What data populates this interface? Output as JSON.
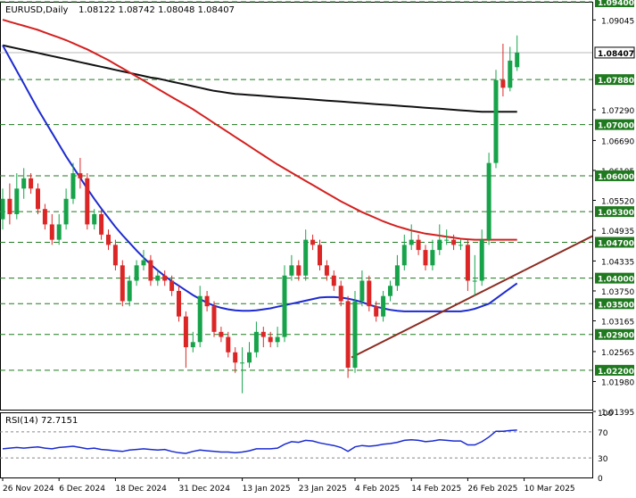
{
  "header": {
    "symbol_tf": "EURUSD,Daily",
    "ohlc": "1.08122 1.08742 1.08048 1.08407"
  },
  "rsi_header": "RSI(14) 72.7151",
  "colors": {
    "bull": "#16a34a",
    "bear": "#dc2626",
    "ma_blue": "#1d2bd0",
    "ma_red": "#d42020",
    "ma_black": "#111111",
    "trend": "#8b2d22",
    "level": "#1f7a1f",
    "rsi": "#1a2bd0"
  },
  "chart_data": [
    {
      "type": "candlestick",
      "ylim": [
        1.0143,
        1.094
      ],
      "y_ticks": [
        "1.09045",
        "1.07290",
        "1.06690",
        "1.06105",
        "1.05520",
        "1.04935",
        "1.04335",
        "1.03750",
        "1.03165",
        "1.02565",
        "1.01980",
        "1.01395"
      ],
      "level_values": [
        1.094,
        1.0788,
        1.07,
        1.06,
        1.053,
        1.047,
        1.04,
        1.035,
        1.029,
        1.022
      ],
      "level_labels": [
        "1.09400",
        "1.07880",
        "1.07000",
        "1.06000",
        "1.05300",
        "1.04700",
        "1.04000",
        "1.03500",
        "1.02900",
        "1.02200"
      ],
      "current_price_label": "1.08407",
      "current_price": 1.08407,
      "x_ticks": [
        "26 Nov 2024",
        "6 Dec 2024",
        "18 Dec 2024",
        "31 Dec 2024",
        "13 Jan 2025",
        "23 Jan 2025",
        "4 Feb 2025",
        "14 Feb 2025",
        "26 Feb 2025",
        "10 Mar 2025"
      ],
      "x_tick_bars": [
        0,
        8,
        16,
        25,
        34,
        42,
        50,
        58,
        66,
        74
      ],
      "series": [
        {
          "close": [
            1.0555,
            1.0525,
            1.0575,
            1.0595,
            1.0575,
            1.0535,
            1.0505,
            1.0475,
            1.0505,
            1.0555,
            1.0605,
            1.0595,
            1.0505,
            1.0525,
            1.0485,
            1.0465,
            1.0425,
            1.0355,
            1.0395,
            1.0425,
            1.0435,
            1.0395,
            1.0405,
            1.0395,
            1.0375,
            1.0325,
            1.0265,
            1.0275,
            1.0365,
            1.0345,
            1.0295,
            1.0285,
            1.0255,
            1.0235,
            1.0235,
            1.0255,
            1.0295,
            1.0285,
            1.0275,
            1.0285,
            1.0405,
            1.0425,
            1.0405,
            1.0475,
            1.0465,
            1.0425,
            1.0405,
            1.0385,
            1.0355,
            1.0225,
            1.0355,
            1.0395,
            1.0345,
            1.0325,
            1.0365,
            1.0385,
            1.0425,
            1.0465,
            1.0475,
            1.0455,
            1.0425,
            1.0455,
            1.0475,
            1.0475,
            1.0465,
            1.0465,
            1.0395,
            1.0395,
            1.0475,
            1.0625,
            1.0787,
            1.0772,
            1.0825,
            1.08407
          ]
        },
        {
          "open": [
            1.0515,
            1.0555,
            1.0525,
            1.0575,
            1.0595,
            1.0575,
            1.0535,
            1.0505,
            1.0475,
            1.0505,
            1.0555,
            1.0605,
            1.0595,
            1.0505,
            1.0525,
            1.0485,
            1.0465,
            1.0425,
            1.0355,
            1.0395,
            1.0425,
            1.0435,
            1.0395,
            1.0405,
            1.0395,
            1.0375,
            1.0325,
            1.0265,
            1.0275,
            1.0365,
            1.0345,
            1.0295,
            1.0285,
            1.0255,
            1.0235,
            1.0235,
            1.0255,
            1.0295,
            1.0285,
            1.0275,
            1.0285,
            1.0405,
            1.0425,
            1.0405,
            1.0475,
            1.0465,
            1.0425,
            1.0405,
            1.0385,
            1.0355,
            1.0225,
            1.0355,
            1.0395,
            1.0345,
            1.0325,
            1.0365,
            1.0385,
            1.0425,
            1.0465,
            1.0475,
            1.0455,
            1.0425,
            1.0455,
            1.0475,
            1.0475,
            1.0465,
            1.0465,
            1.0395,
            1.0395,
            1.0475,
            1.0625,
            1.0787,
            1.0772,
            1.08122
          ]
        },
        {
          "high": [
            1.0575,
            1.0585,
            1.0605,
            1.0615,
            1.0605,
            1.0585,
            1.0545,
            1.0525,
            1.0525,
            1.0575,
            1.0625,
            1.0635,
            1.0605,
            1.0535,
            1.0535,
            1.0495,
            1.0475,
            1.0435,
            1.0405,
            1.0435,
            1.0455,
            1.0445,
            1.0415,
            1.0415,
            1.0405,
            1.0385,
            1.0335,
            1.0295,
            1.0385,
            1.0375,
            1.0355,
            1.0305,
            1.0295,
            1.0265,
            1.0265,
            1.0275,
            1.0315,
            1.0305,
            1.0295,
            1.0305,
            1.0425,
            1.0445,
            1.0435,
            1.0495,
            1.0485,
            1.0475,
            1.0435,
            1.0415,
            1.0395,
            1.0365,
            1.0375,
            1.0415,
            1.0405,
            1.0355,
            1.0375,
            1.0395,
            1.0445,
            1.0485,
            1.0505,
            1.0485,
            1.0465,
            1.0475,
            1.0505,
            1.0495,
            1.0485,
            1.0475,
            1.0475,
            1.0445,
            1.0495,
            1.0645,
            1.0807,
            1.0858,
            1.0852,
            1.08742
          ]
        },
        {
          "low": [
            1.0495,
            1.0505,
            1.0515,
            1.0555,
            1.0565,
            1.0525,
            1.0495,
            1.0465,
            1.0465,
            1.0495,
            1.0545,
            1.0575,
            1.0495,
            1.0495,
            1.0475,
            1.0455,
            1.0415,
            1.0345,
            1.0345,
            1.0385,
            1.0415,
            1.0385,
            1.0385,
            1.0385,
            1.0365,
            1.0315,
            1.0225,
            1.0255,
            1.0265,
            1.0335,
            1.0285,
            1.0275,
            1.0245,
            1.0215,
            1.0175,
            1.0225,
            1.0245,
            1.0265,
            1.0265,
            1.0265,
            1.0275,
            1.0395,
            1.0395,
            1.0395,
            1.0455,
            1.0415,
            1.0395,
            1.0375,
            1.0345,
            1.0205,
            1.0215,
            1.0345,
            1.0335,
            1.0315,
            1.0315,
            1.0355,
            1.0375,
            1.0415,
            1.0455,
            1.0445,
            1.0415,
            1.0415,
            1.0445,
            1.0465,
            1.0455,
            1.0455,
            1.0375,
            1.0365,
            1.0385,
            1.0465,
            1.0615,
            1.0755,
            1.0765,
            1.08048
          ]
        },
        {
          "ma_black": [
            1.0855,
            1.0852,
            1.0849,
            1.0846,
            1.0843,
            1.084,
            1.0837,
            1.0834,
            1.0831,
            1.0828,
            1.0825,
            1.0822,
            1.0819,
            1.0816,
            1.0813,
            1.081,
            1.0807,
            1.0804,
            1.0801,
            1.0798,
            1.0795,
            1.0792,
            1.079,
            1.0787,
            1.0784,
            1.0781,
            1.0778,
            1.0775,
            1.0772,
            1.0769,
            1.0766,
            1.0764,
            1.0762,
            1.076,
            1.0759,
            1.0758,
            1.0757,
            1.0756,
            1.0755,
            1.0754,
            1.0753,
            1.0752,
            1.0751,
            1.075,
            1.0749,
            1.0748,
            1.0747,
            1.0746,
            1.0745,
            1.0744,
            1.0743,
            1.0742,
            1.0741,
            1.074,
            1.0739,
            1.0738,
            1.0737,
            1.0736,
            1.0735,
            1.0734,
            1.0733,
            1.0732,
            1.0731,
            1.073,
            1.0729,
            1.0728,
            1.0727,
            1.0726,
            1.0725,
            1.0725,
            1.0725,
            1.0725,
            1.0725,
            1.0725
          ]
        },
        {
          "ma_red": [
            1.0905,
            1.0901,
            1.0897,
            1.0893,
            1.0889,
            1.0885,
            1.088,
            1.0875,
            1.087,
            1.0865,
            1.0859,
            1.0853,
            1.0847,
            1.084,
            1.0833,
            1.0826,
            1.0818,
            1.081,
            1.0802,
            1.0794,
            1.0786,
            1.0778,
            1.077,
            1.0762,
            1.0754,
            1.0746,
            1.0738,
            1.073,
            1.0721,
            1.0712,
            1.0703,
            1.0694,
            1.0685,
            1.0676,
            1.0667,
            1.0658,
            1.0649,
            1.064,
            1.0631,
            1.0622,
            1.0614,
            1.0606,
            1.0598,
            1.059,
            1.0582,
            1.0574,
            1.0566,
            1.0558,
            1.055,
            1.0543,
            1.0536,
            1.0529,
            1.0523,
            1.0517,
            1.0511,
            1.0506,
            1.0501,
            1.0497,
            1.0493,
            1.049,
            1.0487,
            1.0485,
            1.0483,
            1.0481,
            1.0479,
            1.0477,
            1.0476,
            1.0475,
            1.0475,
            1.0475,
            1.0475,
            1.0475,
            1.0475,
            1.0475
          ]
        },
        {
          "ma_blue": [
            1.0855,
            1.083,
            1.0805,
            1.078,
            1.0755,
            1.073,
            1.0707,
            1.0684,
            1.0661,
            1.0638,
            1.0617,
            1.0596,
            1.0575,
            1.0555,
            1.0536,
            1.0518,
            1.05,
            1.0484,
            1.0469,
            1.0454,
            1.044,
            1.0427,
            1.0415,
            1.0404,
            1.0394,
            1.0385,
            1.0376,
            1.0367,
            1.0359,
            1.0352,
            1.0346,
            1.0342,
            1.0339,
            1.0337,
            1.0336,
            1.0336,
            1.0337,
            1.0339,
            1.0341,
            1.0344,
            1.0347,
            1.035,
            1.0353,
            1.0356,
            1.0359,
            1.0362,
            1.0363,
            1.0363,
            1.0362,
            1.036,
            1.0357,
            1.0353,
            1.0348,
            1.0344,
            1.0341,
            1.0338,
            1.0336,
            1.0335,
            1.0335,
            1.0335,
            1.0335,
            1.0335,
            1.0335,
            1.0335,
            1.0335,
            1.0335,
            1.0337,
            1.034,
            1.0345,
            1.035,
            1.036,
            1.037,
            1.038,
            1.039
          ]
        },
        {
          "trendline": [
            [
              49.5,
              1.0245
            ],
            [
              74,
              1.0415
            ]
          ]
        }
      ]
    },
    {
      "type": "line",
      "ylim": [
        0,
        100
      ],
      "y_ticks": [
        "100",
        "70",
        "30",
        "0"
      ],
      "levels": [
        70,
        30
      ],
      "series": [
        {
          "values": [
            44,
            45,
            46,
            45,
            46,
            47,
            45,
            44,
            46,
            47,
            48,
            46,
            44,
            45,
            43,
            42,
            41,
            40,
            42,
            43,
            44,
            43,
            42,
            43,
            40,
            38,
            37,
            40,
            42,
            41,
            40,
            39,
            39,
            38,
            39,
            41,
            44,
            44,
            44,
            45,
            51,
            55,
            54,
            57,
            56,
            53,
            51,
            49,
            46,
            40,
            47,
            49,
            48,
            49,
            51,
            52,
            54,
            57,
            58,
            57,
            55,
            56,
            58,
            57,
            56,
            56,
            50,
            50,
            55,
            62,
            71,
            71,
            72,
            72.7
          ]
        }
      ]
    }
  ]
}
